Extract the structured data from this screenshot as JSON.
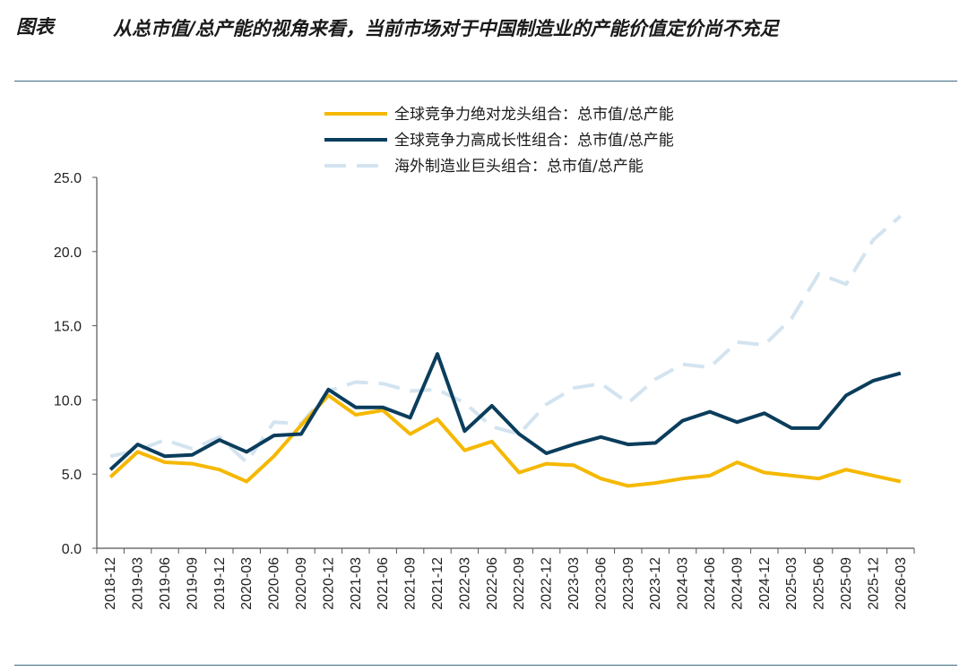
{
  "header": {
    "label": "图表",
    "title": "从总市值/总产能的视角来看，当前市场对于中国制造业的产能价值定价尚不充足"
  },
  "chart_data": {
    "type": "line",
    "title": "",
    "xlabel": "",
    "ylabel": "",
    "ylim": [
      0,
      25
    ],
    "yticks": [
      "0.0",
      "5.0",
      "10.0",
      "15.0",
      "20.0",
      "25.0"
    ],
    "categories": [
      "2018-12",
      "2019-03",
      "2019-06",
      "2019-09",
      "2019-12",
      "2020-03",
      "2020-06",
      "2020-09",
      "2020-12",
      "2021-03",
      "2021-06",
      "2021-09",
      "2021-12",
      "2022-03",
      "2022-06",
      "2022-09",
      "2022-12",
      "2023-03",
      "2023-06",
      "2023-09",
      "2023-12",
      "2024-03",
      "2024-06",
      "2024-09",
      "2024-12",
      "2025-03",
      "2025-06",
      "2025-09",
      "2025-12",
      "2026-03"
    ],
    "legend_position": "top-right",
    "series": [
      {
        "name": "全球竞争力绝对龙头组合：总市值/总产能",
        "color": "#f5b800",
        "style": "solid",
        "values": [
          4.8,
          6.5,
          5.8,
          5.7,
          5.3,
          4.5,
          6.2,
          8.3,
          10.3,
          9.0,
          9.3,
          7.7,
          8.7,
          6.6,
          7.2,
          5.1,
          5.7,
          5.6,
          4.7,
          4.2,
          4.4,
          4.7,
          4.9,
          5.8,
          5.1,
          4.9,
          4.7,
          5.3,
          4.9,
          4.5
        ]
      },
      {
        "name": "全球竞争力高成长性组合：总市值/总产能",
        "color": "#0b3d5c",
        "style": "solid",
        "values": [
          5.3,
          7.0,
          6.2,
          6.3,
          7.3,
          6.5,
          7.6,
          7.7,
          10.7,
          9.5,
          9.5,
          8.8,
          13.1,
          7.9,
          9.6,
          7.7,
          6.4,
          7.0,
          7.5,
          7.0,
          7.1,
          8.6,
          9.2,
          8.5,
          9.1,
          8.1,
          8.1,
          10.3,
          11.3,
          11.8
        ]
      },
      {
        "name": "海外制造业巨头组合：总市值/总产能",
        "color": "#d3e4f0",
        "style": "dashed",
        "values": [
          6.2,
          6.6,
          7.3,
          6.7,
          7.5,
          5.8,
          8.5,
          8.4,
          10.6,
          11.2,
          11.1,
          10.6,
          10.7,
          9.8,
          8.2,
          7.7,
          9.7,
          10.8,
          11.1,
          9.8,
          11.4,
          12.4,
          12.2,
          13.9,
          13.7,
          15.5,
          18.5,
          17.8,
          20.8,
          22.4
        ]
      }
    ]
  }
}
